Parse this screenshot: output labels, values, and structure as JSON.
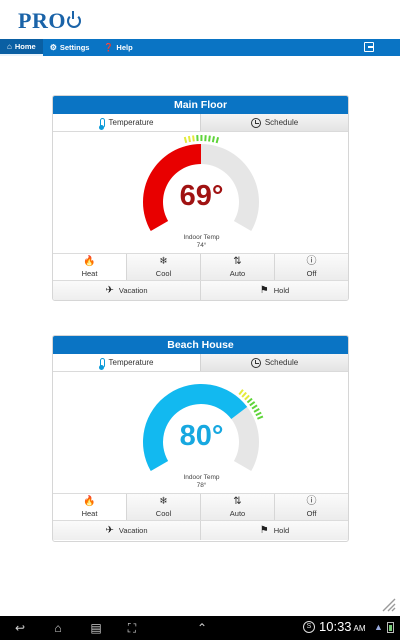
{
  "app": {
    "logo_text": "PRO"
  },
  "nav": {
    "items": [
      {
        "label": "Home",
        "icon": "home-icon",
        "active": true
      },
      {
        "label": "Settings",
        "icon": "gear-icon",
        "active": false
      },
      {
        "label": "Help",
        "icon": "help-icon",
        "active": false
      }
    ],
    "logout_icon": "logout-icon"
  },
  "thermostats": [
    {
      "name": "Main Floor",
      "tabs": [
        "Temperature",
        "Schedule"
      ],
      "setpoint": "69°",
      "setpoint_color": "#a01212",
      "dial_color": "#e80000",
      "fill_fraction": 0.5,
      "indoor_label": "Indoor Temp",
      "indoor_value": "74°",
      "modes": [
        {
          "label": "Heat",
          "icon": "flame-icon",
          "active": true
        },
        {
          "label": "Cool",
          "icon": "snowflake-icon",
          "active": false
        },
        {
          "label": "Auto",
          "icon": "auto-arrows-icon",
          "active": false
        },
        {
          "label": "Off",
          "icon": "power-icon",
          "active": false
        }
      ],
      "actions": [
        {
          "label": "Vacation",
          "icon": "airplane-icon"
        },
        {
          "label": "Hold",
          "icon": "hold-runner-icon"
        }
      ]
    },
    {
      "name": "Beach House",
      "tabs": [
        "Temperature",
        "Schedule"
      ],
      "setpoint": "80°",
      "setpoint_color": "#17a8e0",
      "dial_color": "#12b9f0",
      "fill_fraction": 0.72,
      "indoor_label": "Indoor Temp",
      "indoor_value": "78°",
      "modes": [
        {
          "label": "Heat",
          "icon": "flame-icon",
          "active": true
        },
        {
          "label": "Cool",
          "icon": "snowflake-icon",
          "active": false
        },
        {
          "label": "Auto",
          "icon": "auto-arrows-icon",
          "active": false
        },
        {
          "label": "Off",
          "icon": "power-icon",
          "active": false
        }
      ],
      "actions": [
        {
          "label": "Vacation",
          "icon": "airplane-icon"
        },
        {
          "label": "Hold",
          "icon": "hold-runner-icon"
        }
      ]
    }
  ],
  "system_bar": {
    "time": "10:33",
    "am_pm": "AM"
  }
}
